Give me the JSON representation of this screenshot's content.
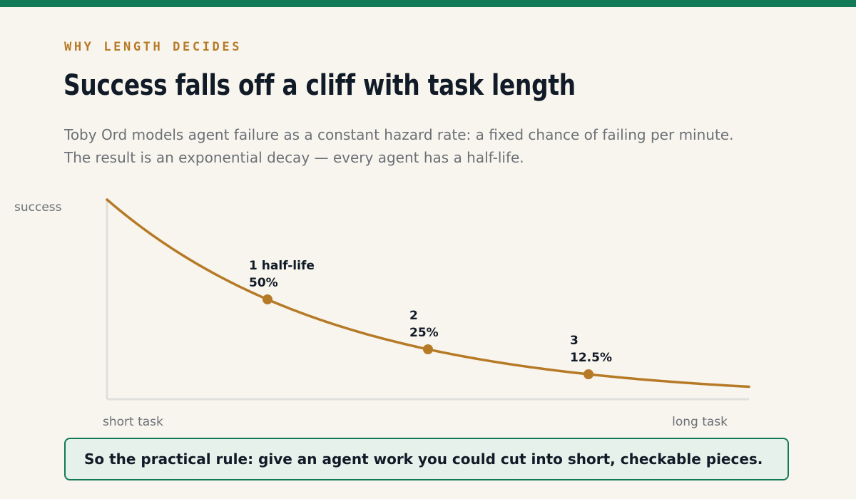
{
  "header": {
    "eyebrow": "WHY LENGTH DECIDES",
    "title": "Success falls off a cliff with task length",
    "subtitle_lines": [
      "Toby Ord models agent failure as a constant hazard rate: a fixed chance of failing per minute.",
      "The result is an exponential decay — every agent has a half-life."
    ]
  },
  "colors": {
    "accent": "#127a57",
    "curve": "#b67a27",
    "axis": "#dfe0db",
    "background": "#f8f5ee",
    "text": "#111a27",
    "muted": "#6b7076"
  },
  "chart_data": {
    "type": "line",
    "title": "",
    "ylabel": "success",
    "x_start_label": "short task",
    "x_end_label": "long task",
    "x_unit": "half-lives",
    "xlim": [
      0,
      4
    ],
    "ylim": [
      0,
      100
    ],
    "grid": false,
    "series": [
      {
        "function": "exponential decay",
        "y0": 100,
        "half_life": 1
      }
    ],
    "markers": [
      {
        "x": 1,
        "y": 50,
        "label": "1 half-life",
        "value_label": "50%"
      },
      {
        "x": 2,
        "y": 25,
        "label": "2",
        "value_label": "25%"
      },
      {
        "x": 3,
        "y": 12.5,
        "label": "3",
        "value_label": "12.5%"
      }
    ]
  },
  "callout": {
    "text": "So the practical rule: give an agent work you could cut into short, checkable pieces."
  }
}
